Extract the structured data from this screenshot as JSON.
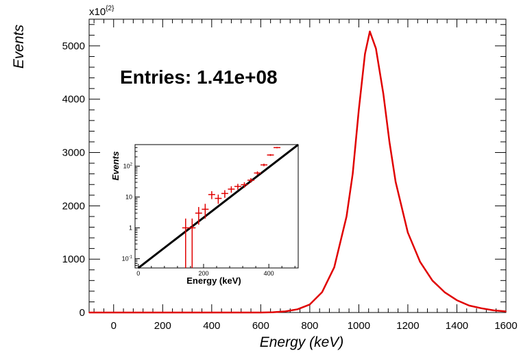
{
  "chart_data": [
    {
      "type": "line",
      "xlabel": "Energy (keV)",
      "ylabel": "Events",
      "y_multiplier_label": "x10^{2}",
      "xlim": [
        -100,
        1600
      ],
      "ylim": [
        0,
        5500
      ],
      "x_ticks": [
        0,
        200,
        400,
        600,
        800,
        1000,
        1200,
        1400,
        1600
      ],
      "y_ticks": [
        0,
        1000,
        2000,
        3000,
        4000,
        5000
      ],
      "annotation": "Entries: 1.41e+08",
      "series_color": "#e00000",
      "x": [
        -100,
        600,
        650,
        700,
        750,
        800,
        850,
        900,
        950,
        975,
        1000,
        1025,
        1045,
        1070,
        1100,
        1125,
        1150,
        1200,
        1250,
        1300,
        1350,
        1400,
        1450,
        1500,
        1550,
        1600
      ],
      "values": [
        0,
        0,
        5,
        20,
        60,
        150,
        380,
        850,
        1800,
        2600,
        3800,
        4850,
        5270,
        4950,
        4100,
        3200,
        2450,
        1500,
        950,
        600,
        380,
        230,
        130,
        80,
        40,
        20
      ]
    },
    {
      "type": "scatter",
      "xlabel": "Energy (keV)",
      "ylabel": "Events",
      "xlim": [
        -10,
        490
      ],
      "ylim": [
        0.05,
        500
      ],
      "y_scale": "log",
      "x_ticks": [
        0,
        200,
        400
      ],
      "y_ticks": [
        0.1,
        1,
        10,
        100
      ],
      "y_tick_labels": [
        "10^{-1}",
        "1",
        "10",
        "10^{2}"
      ],
      "points_color": "#e00000",
      "fit_color": "#000000",
      "points_x": [
        145,
        165,
        185,
        205,
        225,
        245,
        265,
        285,
        305,
        325,
        345,
        365,
        385,
        405,
        425
      ],
      "points_y": [
        1,
        1,
        3,
        4,
        12,
        9,
        13,
        18,
        22,
        25,
        35,
        60,
        110,
        230,
        400
      ],
      "fit_x": [
        0,
        490
      ],
      "fit_y": [
        0.05,
        500
      ]
    }
  ]
}
